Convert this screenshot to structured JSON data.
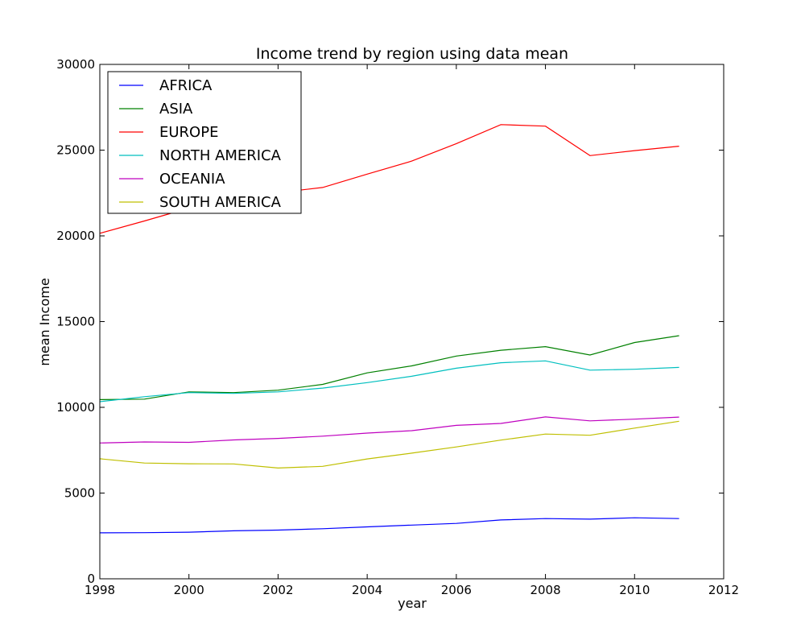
{
  "chart_data": {
    "type": "line",
    "title": "Income trend by region using data mean",
    "xlabel": "year",
    "ylabel": "mean Income",
    "xlim": [
      1998,
      2012
    ],
    "ylim": [
      0,
      30000
    ],
    "xticks": [
      "1998",
      "2000",
      "2002",
      "2004",
      "2006",
      "2008",
      "2010",
      "2012"
    ],
    "yticks": [
      "0",
      "5000",
      "10000",
      "15000",
      "20000",
      "25000",
      "30000"
    ],
    "grid": false,
    "legend_position": "top-left",
    "x": [
      1998,
      1999,
      2000,
      2001,
      2002,
      2003,
      2004,
      2005,
      2006,
      2007,
      2008,
      2009,
      2010,
      2011
    ],
    "series": [
      {
        "name": "AFRICA",
        "color": "#0000ff",
        "values": [
          2680,
          2690,
          2720,
          2800,
          2840,
          2920,
          3030,
          3130,
          3230,
          3430,
          3510,
          3480,
          3560,
          3510
        ]
      },
      {
        "name": "ASIA",
        "color": "#008000",
        "values": [
          10450,
          10480,
          10900,
          10860,
          11000,
          11340,
          12010,
          12420,
          12990,
          13330,
          13540,
          13050,
          13780,
          14180
        ]
      },
      {
        "name": "EUROPE",
        "color": "#ff0000",
        "values": [
          20150,
          20870,
          21620,
          22150,
          22520,
          22820,
          23600,
          24360,
          25380,
          26490,
          26400,
          24680,
          24970,
          25230
        ]
      },
      {
        "name": "NORTH AMERICA",
        "color": "#00bfbf",
        "values": [
          10330,
          10620,
          10860,
          10810,
          10900,
          11120,
          11440,
          11810,
          12280,
          12600,
          12710,
          12170,
          12220,
          12330
        ]
      },
      {
        "name": "OCEANIA",
        "color": "#bf00bf",
        "values": [
          7920,
          7980,
          7960,
          8100,
          8190,
          8320,
          8500,
          8640,
          8950,
          9060,
          9440,
          9210,
          9310,
          9430
        ]
      },
      {
        "name": "SOUTH AMERICA",
        "color": "#bfbf00",
        "values": [
          7000,
          6750,
          6710,
          6700,
          6460,
          6560,
          6990,
          7330,
          7690,
          8090,
          8440,
          8370,
          8790,
          9190
        ]
      }
    ]
  }
}
